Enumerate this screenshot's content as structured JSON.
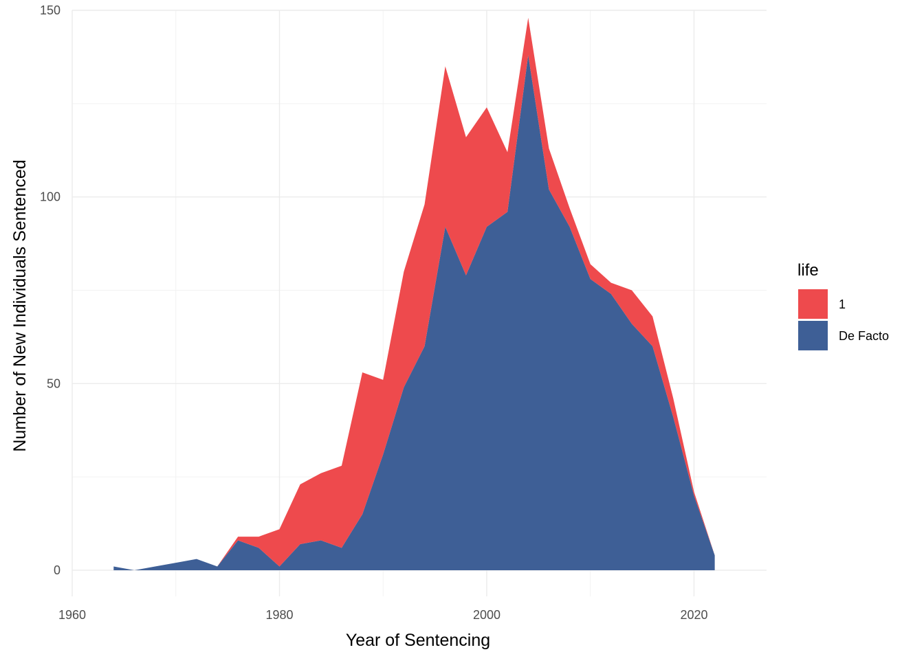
{
  "chart_data": {
    "type": "area",
    "stacked": true,
    "title": "",
    "xlabel": "Year of Sentencing",
    "ylabel": "Number of New Individuals Sentenced",
    "xlim": [
      1960,
      2027
    ],
    "ylim": [
      -7,
      150
    ],
    "x_ticks": [
      1960,
      1980,
      2000,
      2020
    ],
    "y_ticks": [
      0,
      50,
      100,
      150
    ],
    "grid": true,
    "legend": {
      "title": "life",
      "placement": "right"
    },
    "x": [
      1964,
      1966,
      1968,
      1970,
      1972,
      1974,
      1976,
      1978,
      1980,
      1982,
      1984,
      1986,
      1988,
      1990,
      1992,
      1994,
      1996,
      1998,
      2000,
      2002,
      2004,
      2006,
      2008,
      2010,
      2012,
      2014,
      2016,
      2018,
      2020,
      2022
    ],
    "series": [
      {
        "name": "De Facto",
        "color": "#3E5F96",
        "values": [
          1,
          0,
          1,
          2,
          3,
          1,
          8,
          6,
          1,
          7,
          8,
          6,
          15,
          31,
          49,
          60,
          92,
          79,
          92,
          96,
          138,
          102,
          92,
          78,
          74,
          66,
          60,
          41,
          20,
          4
        ]
      },
      {
        "name": "1",
        "color": "#EE4A4D",
        "values": [
          0,
          0,
          0,
          0,
          0,
          0,
          1,
          3,
          10,
          16,
          18,
          22,
          38,
          20,
          31,
          38,
          43,
          37,
          32,
          16,
          10,
          11,
          5,
          4,
          3,
          9,
          8,
          5,
          1,
          0
        ]
      }
    ]
  }
}
